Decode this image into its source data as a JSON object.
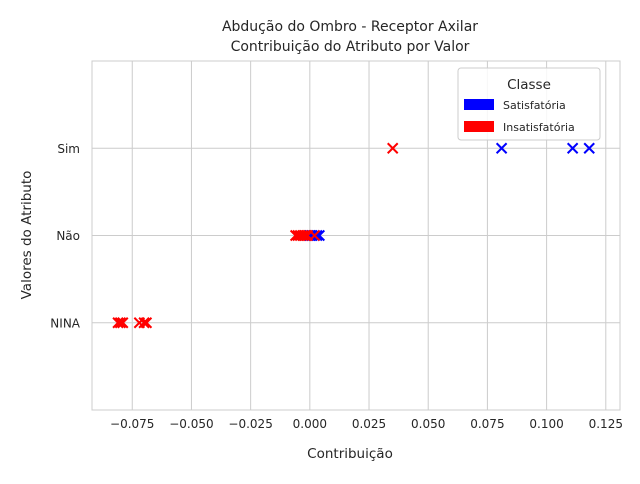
{
  "colors": {
    "satisfatoria": "#0000ff",
    "insatisfatoria": "#ff0000",
    "grid": "#cccccc",
    "text": "#262626"
  },
  "chart_data": {
    "type": "scatter",
    "marker": "x",
    "title_line1": "Abdução do Ombro - Receptor Axilar",
    "title_line2": "Contribuição do Atributo por Valor",
    "xlabel": "Contribuição",
    "ylabel": "Valores do Atributo",
    "xlim": [
      -0.092,
      0.131
    ],
    "xticks": [
      -0.075,
      -0.05,
      -0.025,
      0.0,
      0.025,
      0.05,
      0.075,
      0.1,
      0.125
    ],
    "xtick_labels": [
      "−0.075",
      "−0.050",
      "−0.025",
      "0.000",
      "0.025",
      "0.050",
      "0.075",
      "0.100",
      "0.125"
    ],
    "categories": [
      "NINA",
      "Não",
      "Sim"
    ],
    "grid": true,
    "legend": {
      "title": "Classe",
      "placement": "top-right",
      "entries": [
        "Satisfatória",
        "Insatisfatória"
      ]
    },
    "series": [
      {
        "name": "Satisfatória",
        "color": "#0000ff",
        "points": [
          {
            "x": 0.081,
            "y": "Sim"
          },
          {
            "x": 0.111,
            "y": "Sim"
          },
          {
            "x": 0.118,
            "y": "Sim"
          },
          {
            "x": 0.0,
            "y": "Não"
          },
          {
            "x": 0.001,
            "y": "Não"
          },
          {
            "x": 0.002,
            "y": "Não"
          },
          {
            "x": 0.003,
            "y": "Não"
          },
          {
            "x": 0.004,
            "y": "Não"
          }
        ]
      },
      {
        "name": "Insatisfatória",
        "color": "#ff0000",
        "points": [
          {
            "x": 0.035,
            "y": "Sim"
          },
          {
            "x": -0.006,
            "y": "Não"
          },
          {
            "x": -0.005,
            "y": "Não"
          },
          {
            "x": -0.004,
            "y": "Não"
          },
          {
            "x": -0.003,
            "y": "Não"
          },
          {
            "x": -0.002,
            "y": "Não"
          },
          {
            "x": -0.001,
            "y": "Não"
          },
          {
            "x": 0.002,
            "y": "Não"
          },
          {
            "x": -0.081,
            "y": "NINA"
          },
          {
            "x": -0.08,
            "y": "NINA"
          },
          {
            "x": -0.079,
            "y": "NINA"
          },
          {
            "x": -0.072,
            "y": "NINA"
          },
          {
            "x": -0.07,
            "y": "NINA"
          },
          {
            "x": -0.069,
            "y": "NINA"
          }
        ]
      }
    ]
  }
}
